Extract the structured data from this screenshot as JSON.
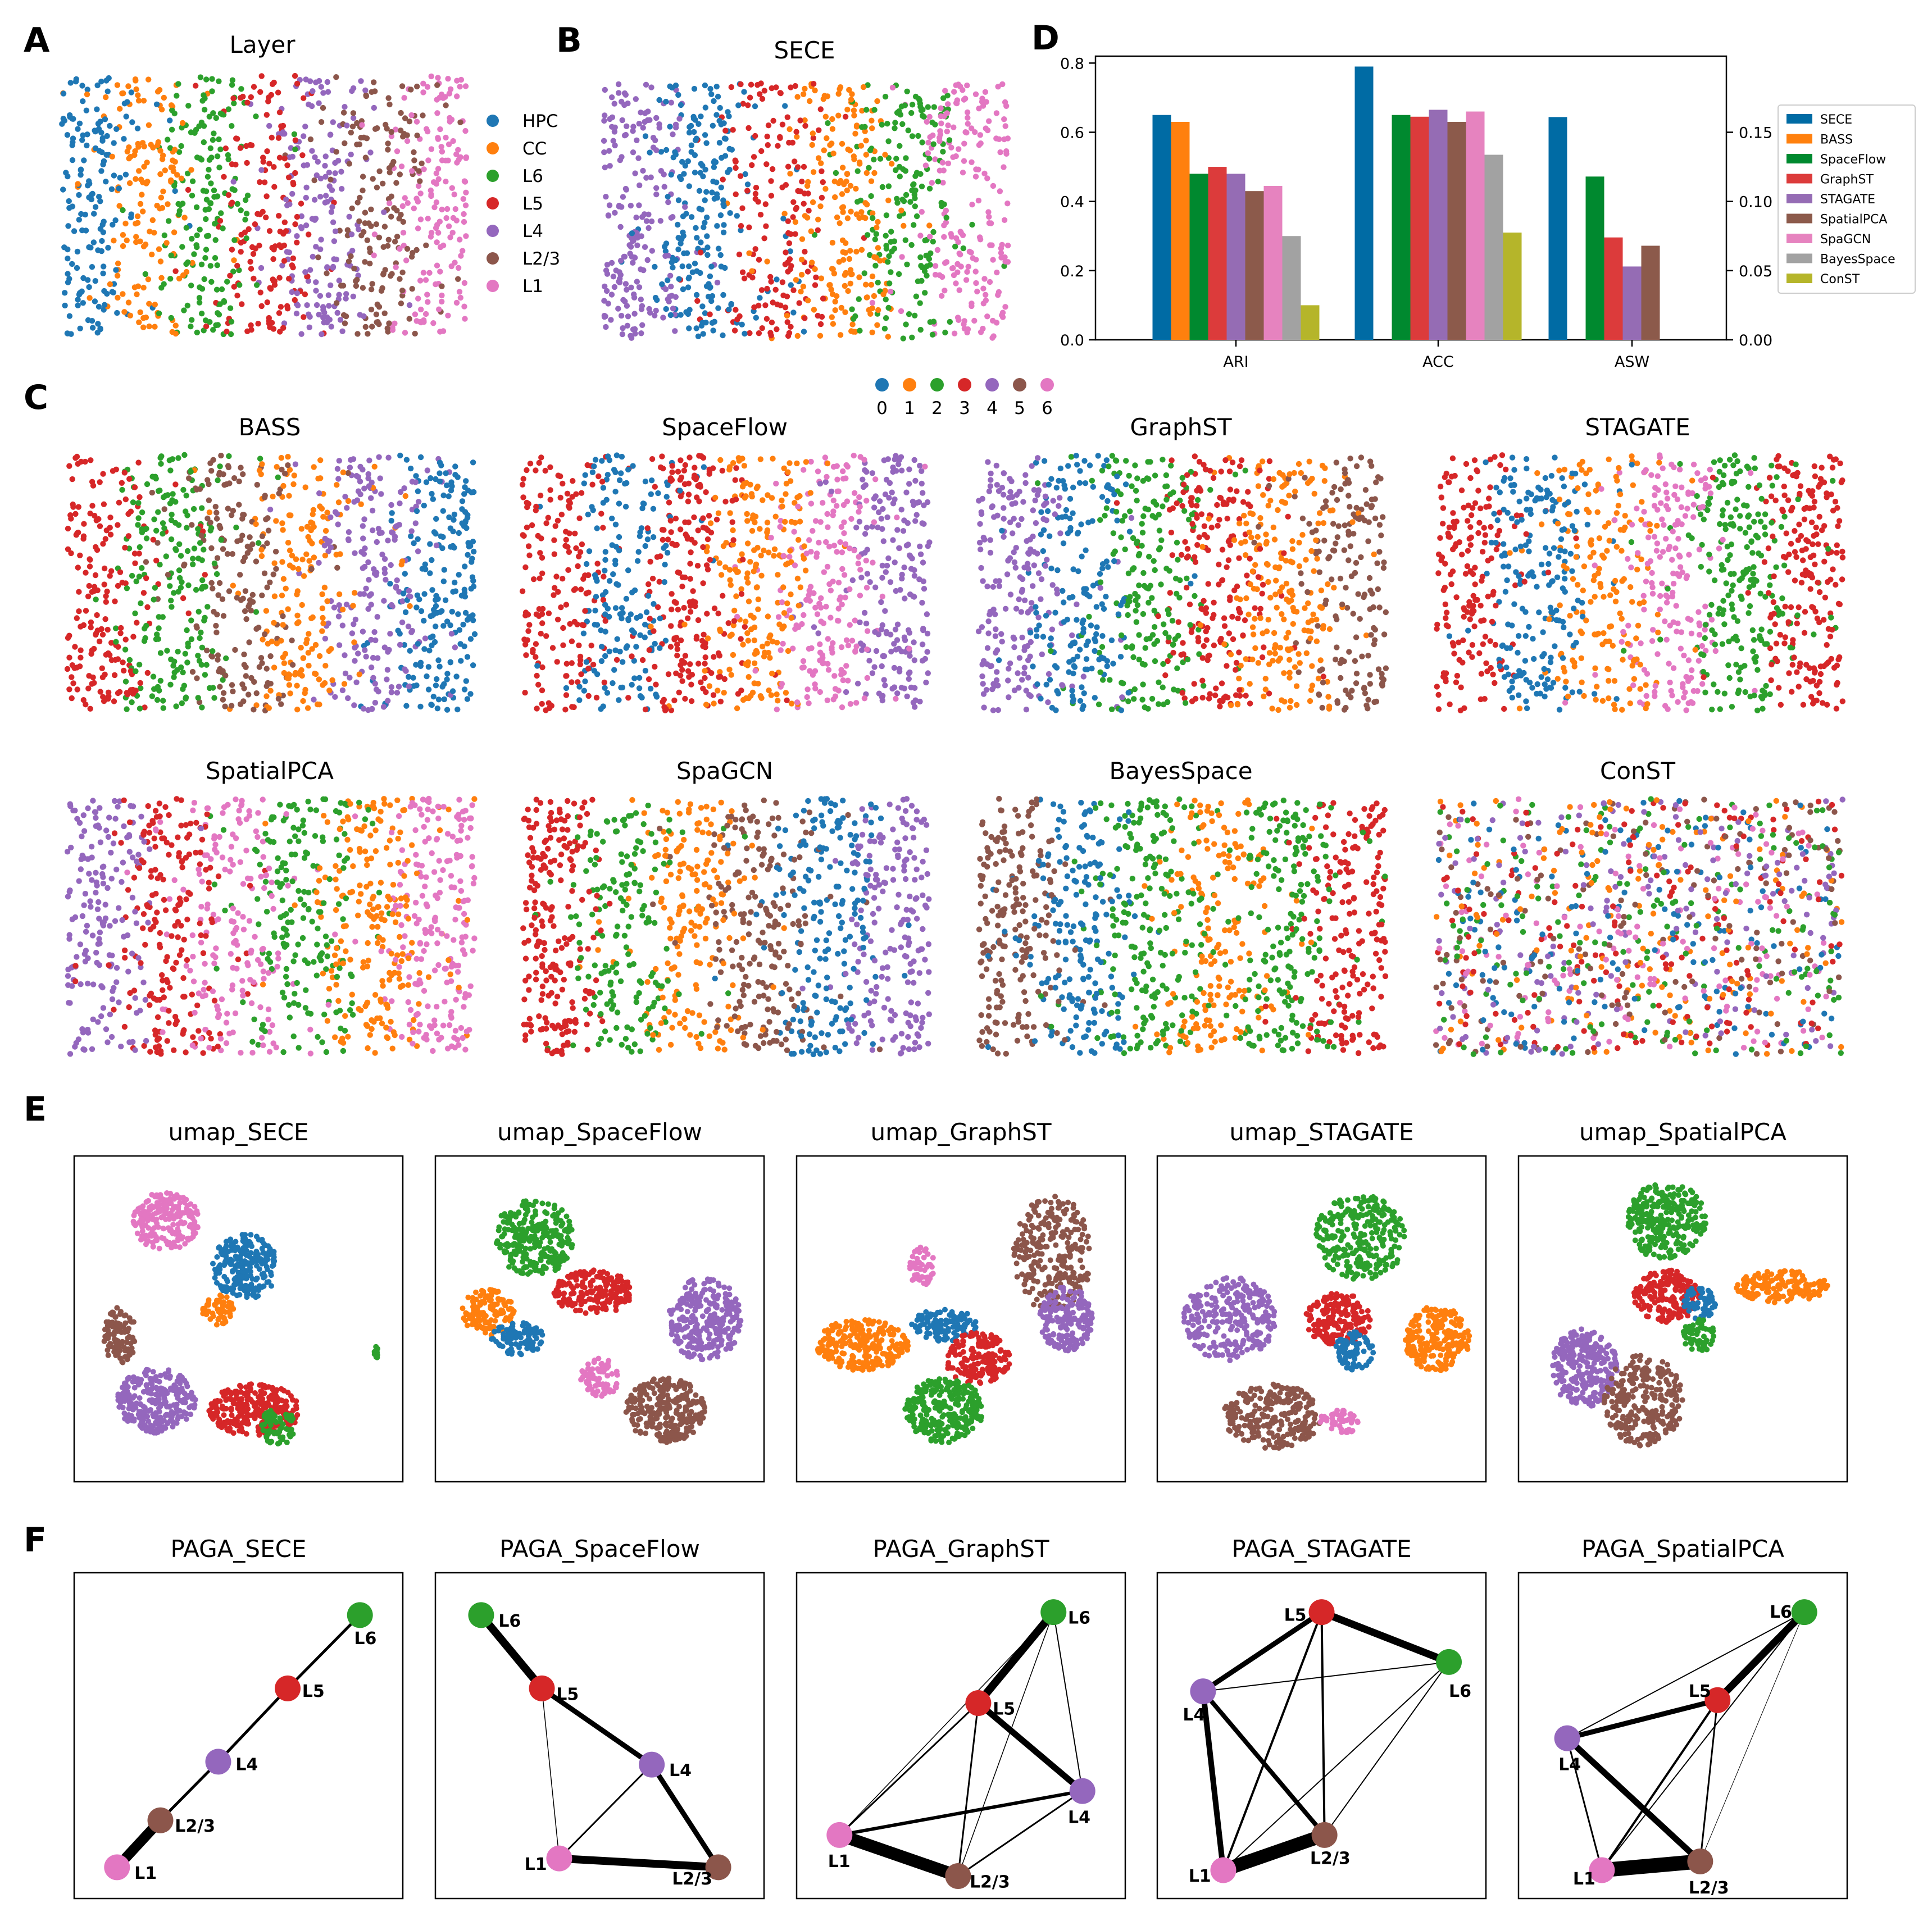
{
  "panel_labels": [
    "A",
    "B",
    "C",
    "D",
    "E",
    "F"
  ],
  "colors": {
    "c0": "#1f77b4",
    "c1": "#ff7f0e",
    "c2": "#2ca02c",
    "c3": "#d62728",
    "c4": "#9467bd",
    "c5": "#8c564b",
    "c6": "#e377c2",
    "c7": "#7f7f7f",
    "c8": "#bcbd22",
    "d_SECE": "#006ba4",
    "d_BASS": "#ff800e",
    "d_SpaceFlow": "#00892f",
    "d_GraphST": "#dc3b3b",
    "d_STAGATE": "#956cb4",
    "d_SpatialPCA": "#8c5a4b",
    "d_SpaGCN": "#e683bf",
    "d_BayesSpace": "#a2a2a2",
    "d_ConST": "#b5b52a"
  },
  "panel_a": {
    "title": "Layer",
    "legend": [
      {
        "label": "HPC",
        "color": "#1f77b4"
      },
      {
        "label": "CC",
        "color": "#ff7f0e"
      },
      {
        "label": "L6",
        "color": "#2ca02c"
      },
      {
        "label": "L5",
        "color": "#d62728"
      },
      {
        "label": "L4",
        "color": "#9467bd"
      },
      {
        "label": "L2/3",
        "color": "#8c564b"
      },
      {
        "label": "L1",
        "color": "#e377c2"
      }
    ],
    "bands": [
      "c0",
      "c1",
      "c2",
      "c3",
      "c4",
      "c5",
      "c6"
    ]
  },
  "panel_b": {
    "title": "SECE",
    "bands": [
      "c4",
      "c0",
      "c3",
      "c1",
      "c2",
      "c6"
    ]
  },
  "cluster_legend": {
    "labels": [
      "0",
      "1",
      "2",
      "3",
      "4",
      "5",
      "6"
    ],
    "colors": [
      "c0",
      "c1",
      "c2",
      "c3",
      "c4",
      "c5",
      "c6"
    ]
  },
  "panel_c": {
    "maps": [
      {
        "title": "BASS",
        "bands": [
          "c3",
          "c2",
          "c5",
          "c1",
          "c4",
          "c0"
        ]
      },
      {
        "title": "SpaceFlow",
        "bands": [
          "c3",
          "c0",
          "c3",
          "c1",
          "c6",
          "c4"
        ]
      },
      {
        "title": "GraphST",
        "bands": [
          "c4",
          "c0",
          "c2",
          "c3",
          "c1",
          "c5"
        ]
      },
      {
        "title": "STAGATE",
        "bands": [
          "c3",
          "c0",
          "c1",
          "c6",
          "c2",
          "c3"
        ]
      },
      {
        "title": "SpatialPCA",
        "bands": [
          "c4",
          "c3",
          "c6",
          "c2",
          "c1",
          "c6"
        ]
      },
      {
        "title": "SpaGCN",
        "bands": [
          "c3",
          "c2",
          "c1",
          "c5",
          "c0",
          "c4"
        ]
      },
      {
        "title": "BayesSpace",
        "bands": [
          "c5",
          "c0",
          "c2",
          "c1",
          "c2",
          "c3"
        ]
      },
      {
        "title": "ConST",
        "bands": [
          "mix",
          "mix",
          "mix",
          "mix",
          "mix",
          "mix"
        ]
      }
    ]
  },
  "chart_data": {
    "type": "bar",
    "categories": [
      "ARI",
      "ACC",
      "ASW"
    ],
    "series": [
      {
        "name": "SECE",
        "values": [
          0.65,
          0.79,
          0.161
        ]
      },
      {
        "name": "BASS",
        "values": [
          0.63,
          null,
          null
        ]
      },
      {
        "name": "SpaceFlow",
        "values": [
          0.48,
          0.65,
          0.118
        ]
      },
      {
        "name": "GraphST",
        "values": [
          0.5,
          0.645,
          0.074
        ]
      },
      {
        "name": "STAGATE",
        "values": [
          0.48,
          0.665,
          0.053
        ]
      },
      {
        "name": "SpatialPCA",
        "values": [
          0.43,
          0.63,
          0.068
        ]
      },
      {
        "name": "SpaGCN",
        "values": [
          0.445,
          0.66,
          null
        ]
      },
      {
        "name": "BayesSpace",
        "values": [
          0.3,
          0.535,
          null
        ]
      },
      {
        "name": "ConST",
        "values": [
          0.1,
          0.31,
          null
        ]
      }
    ],
    "ylim_left": [
      0,
      0.82
    ],
    "yticks_left": [
      "0.0",
      "0.2",
      "0.4",
      "0.6",
      "0.8"
    ],
    "ylim_right": [
      0,
      0.205
    ],
    "yticks_right": [
      "0.00",
      "0.05",
      "0.10",
      "0.15"
    ],
    "secondary_axis_category": "ASW",
    "legend_position": "right"
  },
  "panel_e": {
    "titles": [
      "umap_SECE",
      "umap_SpaceFlow",
      "umap_GraphST",
      "umap_STAGATE",
      "umap_SpatialPCA"
    ]
  },
  "panel_f": {
    "graphs": [
      {
        "title": "PAGA_SECE"
      },
      {
        "title": "PAGA_SpaceFlow"
      },
      {
        "title": "PAGA_GraphST"
      },
      {
        "title": "PAGA_STAGATE"
      },
      {
        "title": "PAGA_SpatialPCA"
      }
    ],
    "node_labels": {
      "L6": "L6",
      "L5": "L5",
      "L4": "L4",
      "L23": "L2/3",
      "L1": "L1"
    }
  }
}
